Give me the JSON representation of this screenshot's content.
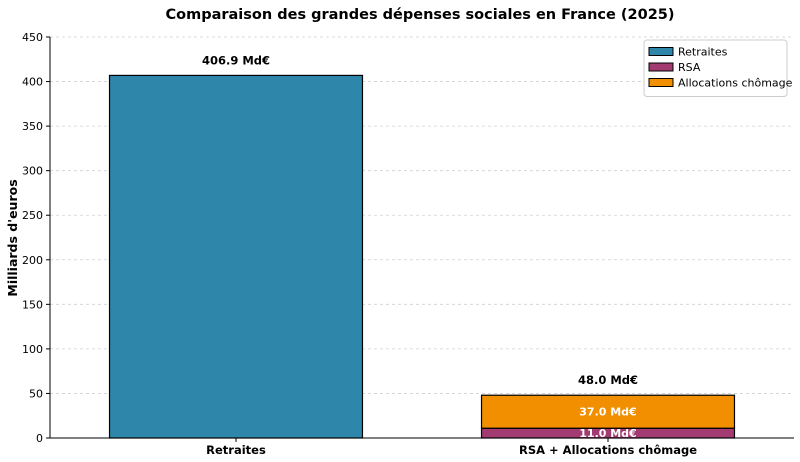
{
  "chart_data": {
    "type": "bar",
    "title": "Comparaison des grandes dépenses sociales en France (2025)",
    "xlabel": "",
    "ylabel": "Milliards d'euros",
    "ylim": [
      0,
      450
    ],
    "yticks": [
      0,
      50,
      100,
      150,
      200,
      250,
      300,
      350,
      400,
      450
    ],
    "grid": "horizontal dashed",
    "legend_position": "top-right",
    "categories": [
      "Retraites",
      "RSA + Allocations chômage"
    ],
    "series": [
      {
        "name": "Retraites",
        "color": "#2e86ab",
        "values": [
          406.9,
          0
        ]
      },
      {
        "name": "RSA",
        "color": "#a23b72",
        "values": [
          0,
          11.0
        ]
      },
      {
        "name": "Allocations chômage",
        "color": "#f18f01",
        "values": [
          0,
          37.0
        ]
      }
    ],
    "total_labels": [
      "406.9 Md€",
      "48.0 Md€"
    ],
    "segment_labels": [
      {
        "series": "RSA",
        "category": "RSA + Allocations chômage",
        "text": "11.0 Md€"
      },
      {
        "series": "Allocations chômage",
        "category": "RSA + Allocations chômage",
        "text": "37.0 Md€"
      }
    ]
  }
}
